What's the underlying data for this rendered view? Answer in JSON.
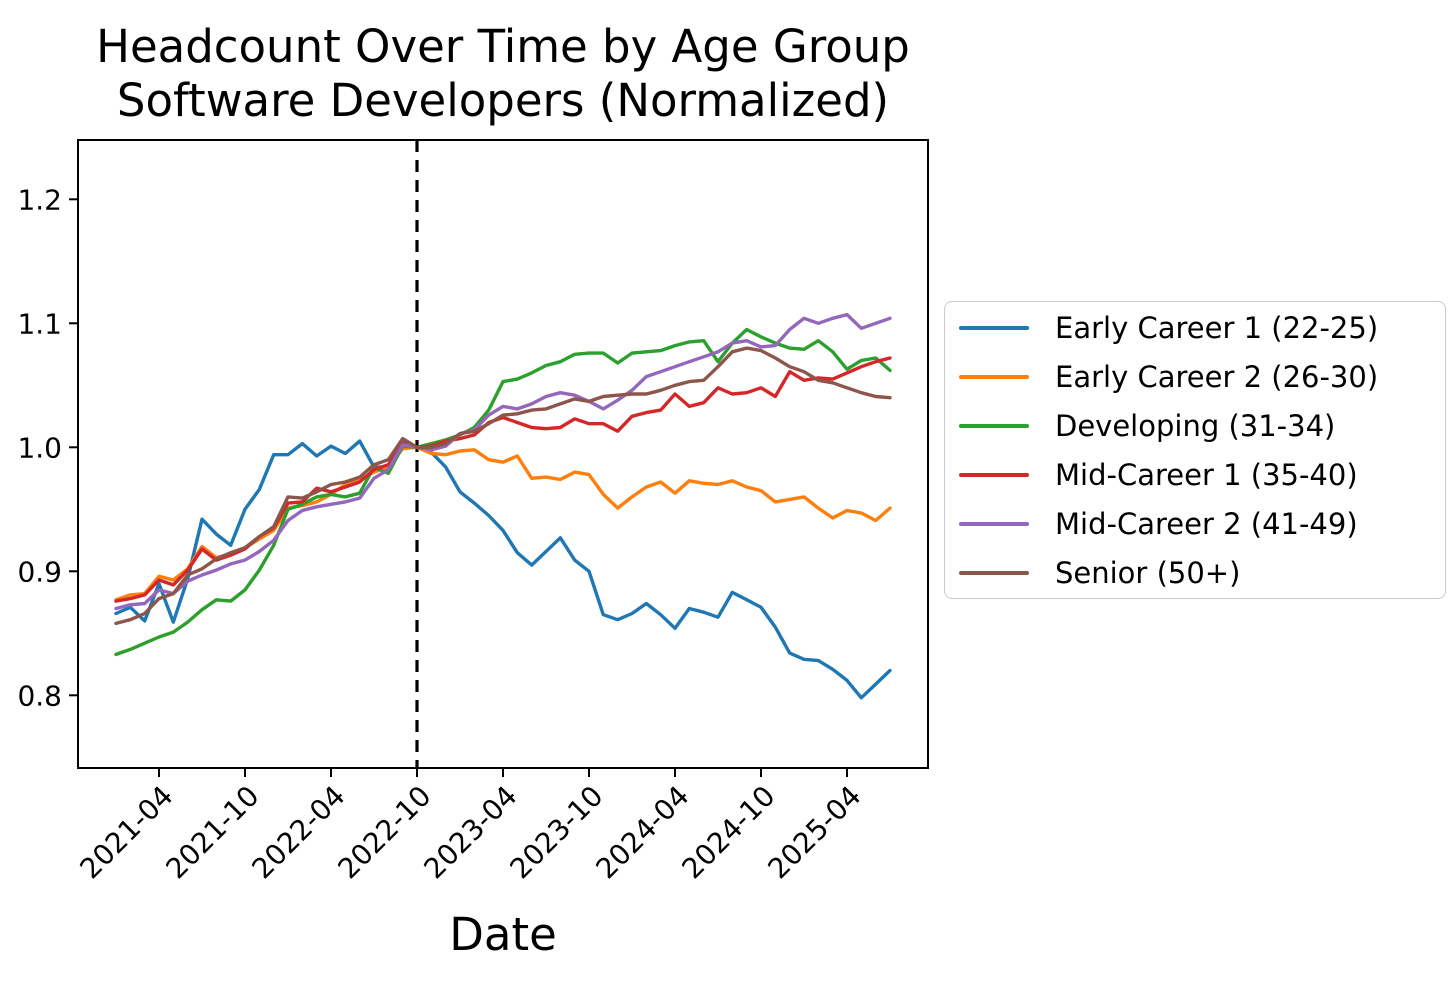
{
  "title": {
    "line1": "Headcount Over Time by Age Group",
    "line2": "Software Developers (Normalized)"
  },
  "axes": {
    "xlabel": "Date",
    "x_tick_labels": [
      "2021-04",
      "2021-10",
      "2022-04",
      "2022-10",
      "2023-04",
      "2023-10",
      "2024-04",
      "2024-10",
      "2025-04"
    ],
    "y_tick_labels": [
      "1.2",
      "1.1",
      "1.0",
      "0.9",
      "0.8"
    ]
  },
  "legend": {
    "position": "right-outside",
    "items": [
      {
        "label": "Early Career 1 (22-25)",
        "color": "#1f77b4"
      },
      {
        "label": "Early Career 2 (26-30)",
        "color": "#ff7f0e"
      },
      {
        "label": "Developing (31-34)",
        "color": "#2ca02c"
      },
      {
        "label": "Mid-Career 1 (35-40)",
        "color": "#d62728"
      },
      {
        "label": "Mid-Career 2 (41-49)",
        "color": "#9467bd"
      },
      {
        "label": "Senior (50+)",
        "color": "#8c564b"
      }
    ]
  },
  "chart_data": {
    "type": "line",
    "title": "Headcount Over Time by Age Group — Software Developers (Normalized)",
    "xlabel": "Date",
    "ylabel": "",
    "grid": false,
    "ylim": [
      0.741,
      1.248
    ],
    "y_ticks": [
      1.2,
      1.1,
      1.0,
      0.9,
      0.8
    ],
    "x_ticks": [
      "2021-04",
      "2021-10",
      "2022-04",
      "2022-10",
      "2023-04",
      "2023-10",
      "2024-04",
      "2024-10",
      "2025-04"
    ],
    "vline": {
      "x": "2022-10",
      "color": "#000000",
      "style": "dashed",
      "note": "normalization point, all series = 1.0"
    },
    "x": [
      "2021-01",
      "2021-02",
      "2021-03",
      "2021-04",
      "2021-05",
      "2021-06",
      "2021-07",
      "2021-08",
      "2021-09",
      "2021-10",
      "2021-11",
      "2021-12",
      "2022-01",
      "2022-02",
      "2022-03",
      "2022-04",
      "2022-05",
      "2022-06",
      "2022-07",
      "2022-08",
      "2022-09",
      "2022-10",
      "2022-11",
      "2022-12",
      "2023-01",
      "2023-02",
      "2023-03",
      "2023-04",
      "2023-05",
      "2023-06",
      "2023-07",
      "2023-08",
      "2023-09",
      "2023-10",
      "2023-11",
      "2023-12",
      "2024-01",
      "2024-02",
      "2024-03",
      "2024-04",
      "2024-05",
      "2024-06",
      "2024-07",
      "2024-08",
      "2024-09",
      "2024-10",
      "2024-11",
      "2024-12",
      "2025-01",
      "2025-02",
      "2025-03",
      "2025-04",
      "2025-05",
      "2025-06",
      "2025-07"
    ],
    "series": [
      {
        "name": "Early Career 1 (22-25)",
        "color": "#1f77b4",
        "values": [
          0.866,
          0.871,
          0.86,
          0.89,
          0.859,
          0.894,
          0.942,
          0.93,
          0.921,
          0.95,
          0.966,
          0.994,
          0.994,
          1.003,
          0.993,
          1.001,
          0.995,
          1.005,
          0.984,
          0.984,
          1.004,
          1.0,
          0.996,
          0.984,
          0.964,
          0.955,
          0.945,
          0.933,
          0.915,
          0.905,
          0.916,
          0.927,
          0.909,
          0.9,
          0.865,
          0.861,
          0.866,
          0.874,
          0.865,
          0.854,
          0.87,
          0.867,
          0.863,
          0.883,
          0.877,
          0.871,
          0.855,
          0.834,
          0.829,
          0.828,
          0.821,
          0.812,
          0.798,
          0.809,
          0.82
        ]
      },
      {
        "name": "Early Career 2 (26-30)",
        "color": "#ff7f0e",
        "values": [
          0.877,
          0.881,
          0.882,
          0.896,
          0.893,
          0.902,
          0.92,
          0.911,
          0.914,
          0.919,
          0.926,
          0.933,
          0.951,
          0.953,
          0.956,
          0.962,
          0.97,
          0.974,
          0.98,
          0.984,
          0.999,
          1.0,
          0.995,
          0.994,
          0.997,
          0.998,
          0.99,
          0.988,
          0.993,
          0.975,
          0.976,
          0.974,
          0.98,
          0.978,
          0.962,
          0.951,
          0.96,
          0.968,
          0.972,
          0.963,
          0.973,
          0.971,
          0.97,
          0.973,
          0.968,
          0.965,
          0.956,
          0.958,
          0.96,
          0.951,
          0.943,
          0.949,
          0.947,
          0.941,
          0.951
        ]
      },
      {
        "name": "Developing (31-34)",
        "color": "#2ca02c",
        "values": [
          0.833,
          0.837,
          0.842,
          0.847,
          0.851,
          0.859,
          0.869,
          0.877,
          0.876,
          0.885,
          0.901,
          0.921,
          0.95,
          0.954,
          0.96,
          0.962,
          0.96,
          0.963,
          0.984,
          0.979,
          1.001,
          1.0,
          1.003,
          1.006,
          1.01,
          1.016,
          1.03,
          1.053,
          1.055,
          1.06,
          1.066,
          1.069,
          1.075,
          1.076,
          1.076,
          1.068,
          1.076,
          1.077,
          1.078,
          1.082,
          1.085,
          1.086,
          1.069,
          1.084,
          1.095,
          1.089,
          1.084,
          1.08,
          1.079,
          1.086,
          1.077,
          1.063,
          1.07,
          1.072,
          1.062
        ]
      },
      {
        "name": "Mid-Career 1 (35-40)",
        "color": "#d62728",
        "values": [
          0.876,
          0.878,
          0.881,
          0.893,
          0.889,
          0.901,
          0.918,
          0.909,
          0.913,
          0.918,
          0.928,
          0.935,
          0.955,
          0.956,
          0.967,
          0.964,
          0.968,
          0.972,
          0.982,
          0.986,
          1.003,
          1.0,
          1.001,
          1.005,
          1.007,
          1.01,
          1.02,
          1.024,
          1.02,
          1.016,
          1.015,
          1.016,
          1.023,
          1.019,
          1.019,
          1.013,
          1.025,
          1.028,
          1.03,
          1.043,
          1.033,
          1.036,
          1.048,
          1.043,
          1.044,
          1.048,
          1.041,
          1.061,
          1.054,
          1.056,
          1.055,
          1.06,
          1.065,
          1.069,
          1.072
        ]
      },
      {
        "name": "Mid-Career 2 (41-49)",
        "color": "#9467bd",
        "values": [
          0.87,
          0.873,
          0.874,
          0.885,
          0.882,
          0.892,
          0.897,
          0.901,
          0.906,
          0.909,
          0.916,
          0.925,
          0.941,
          0.949,
          0.952,
          0.954,
          0.956,
          0.959,
          0.975,
          0.982,
          1.002,
          1.0,
          0.998,
          1.001,
          1.011,
          1.014,
          1.026,
          1.033,
          1.031,
          1.035,
          1.041,
          1.044,
          1.042,
          1.037,
          1.031,
          1.038,
          1.046,
          1.057,
          1.061,
          1.065,
          1.069,
          1.073,
          1.077,
          1.084,
          1.086,
          1.081,
          1.082,
          1.095,
          1.104,
          1.1,
          1.104,
          1.107,
          1.096,
          1.1,
          1.104
        ]
      },
      {
        "name": "Senior (50+)",
        "color": "#8c564b",
        "values": [
          0.858,
          0.861,
          0.866,
          0.878,
          0.882,
          0.897,
          0.902,
          0.91,
          0.915,
          0.919,
          0.928,
          0.936,
          0.96,
          0.959,
          0.964,
          0.97,
          0.972,
          0.976,
          0.986,
          0.99,
          1.007,
          1.0,
          1.0,
          1.003,
          1.011,
          1.013,
          1.019,
          1.026,
          1.027,
          1.03,
          1.031,
          1.035,
          1.039,
          1.037,
          1.041,
          1.042,
          1.043,
          1.043,
          1.046,
          1.05,
          1.053,
          1.054,
          1.065,
          1.077,
          1.08,
          1.078,
          1.072,
          1.065,
          1.061,
          1.054,
          1.052,
          1.048,
          1.044,
          1.041,
          1.04
        ]
      }
    ]
  }
}
